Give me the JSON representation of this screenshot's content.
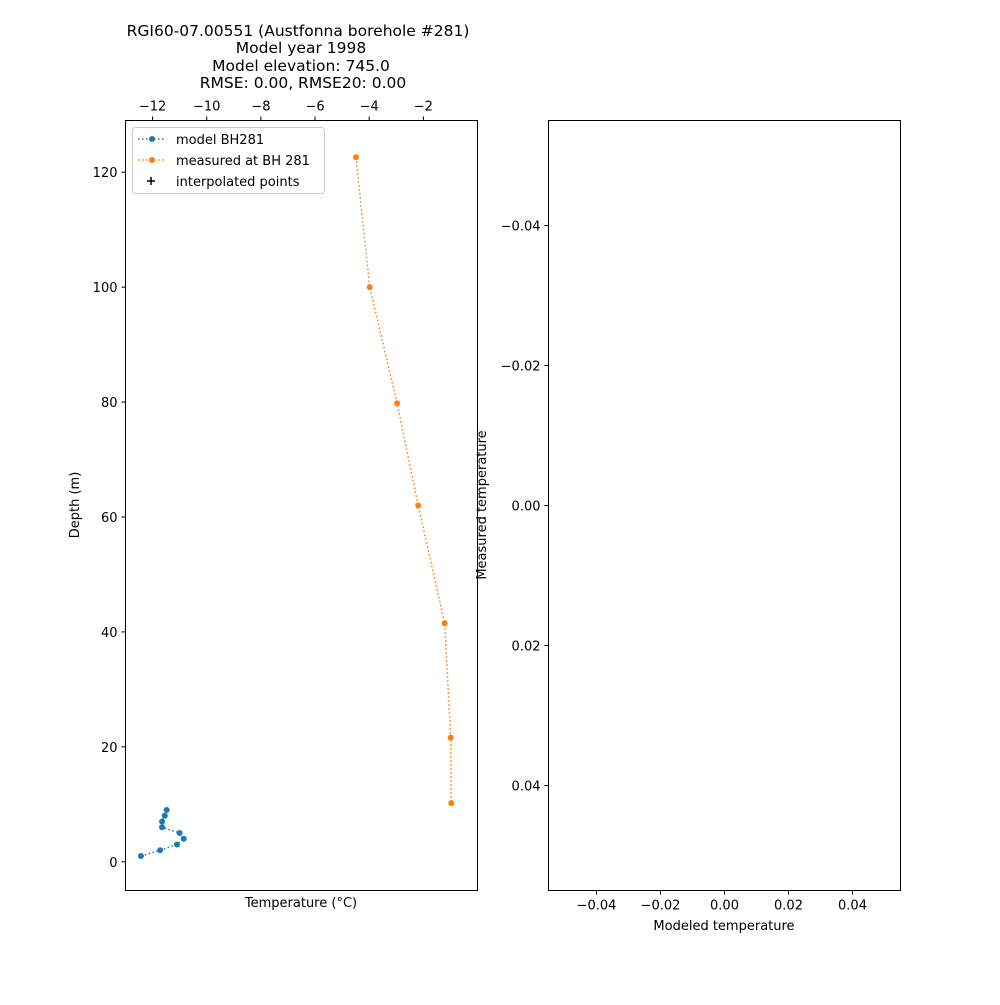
{
  "chart_data": [
    {
      "type": "line",
      "title_lines": [
        "RGI60-07.00551 (Austfonna borehole #281)",
        "Model year 1998",
        "Model elevation: 745.0",
        "RMSE: 0.00, RMSE20: 0.00"
      ],
      "xlabel": "Temperature (°C)",
      "ylabel": "Depth (m)",
      "x_axis_position": "top",
      "xlim": [
        -13.0,
        0.0
      ],
      "ylim": [
        -5,
        129
      ],
      "xticks": [
        -12,
        -10,
        -8,
        -6,
        -4,
        -2
      ],
      "xtick_labels": [
        "−12",
        "−10",
        "−8",
        "−6",
        "−4",
        "−2"
      ],
      "yticks": [
        0,
        20,
        40,
        60,
        80,
        100,
        120
      ],
      "ytick_labels": [
        "0",
        "20",
        "40",
        "60",
        "80",
        "100",
        "120"
      ],
      "legend_position": "upper-left",
      "series": [
        {
          "name": "model BH281",
          "color": "#1f77b4",
          "style": "dotted-with-markers",
          "x": [
            -12.43,
            -11.72,
            -11.1,
            -10.85,
            -11.0,
            -11.65,
            -11.65,
            -11.55,
            -11.48
          ],
          "y": [
            1,
            2,
            3,
            4,
            5,
            6,
            7,
            8,
            9
          ]
        },
        {
          "name": "measured at BH 281",
          "color": "#ff7f0e",
          "style": "dotted-with-markers",
          "x": [
            -4.49,
            -3.98,
            -2.97,
            -2.19,
            -1.21,
            -0.99,
            -0.97
          ],
          "y": [
            122.6,
            100.0,
            79.8,
            62.0,
            41.5,
            21.6,
            10.2
          ]
        },
        {
          "name": "interpolated points",
          "color": "#000000",
          "style": "plus-markers",
          "x": [],
          "y": []
        }
      ]
    },
    {
      "type": "scatter",
      "xlabel": "Modeled temperature",
      "ylabel": "Measured temperature",
      "xlim": [
        -0.055,
        0.055
      ],
      "ylim": [
        0.055,
        -0.055
      ],
      "y_inverted": true,
      "xticks": [
        -0.04,
        -0.02,
        0.0,
        0.02,
        0.04
      ],
      "xtick_labels": [
        "−0.04",
        "−0.02",
        "0.00",
        "0.02",
        "0.04"
      ],
      "yticks": [
        -0.04,
        -0.02,
        0.0,
        0.02,
        0.04
      ],
      "ytick_labels": [
        "−0.04",
        "−0.02",
        "0.00",
        "0.02",
        "0.04"
      ],
      "series": []
    }
  ]
}
